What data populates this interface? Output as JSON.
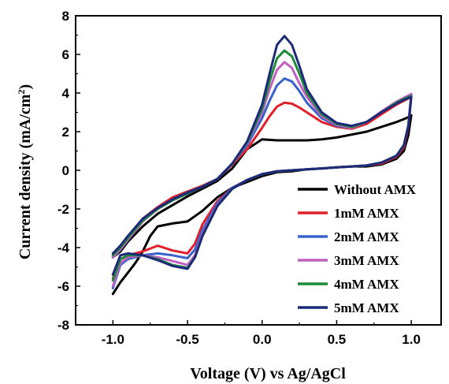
{
  "chart_data": {
    "type": "line",
    "xlabel": "Voltage (V) vs Ag/AgCl",
    "ylabel_main": "Current density (mA/cm",
    "ylabel_sup": "2",
    "ylabel_close": ")",
    "xlim": [
      -1.25,
      1.2
    ],
    "ylim": [
      -8,
      8
    ],
    "x_ticks": [
      -1.0,
      -0.5,
      0.0,
      0.5,
      1.0
    ],
    "x_tick_labels": [
      "-1.0",
      "-0.5",
      "0.0",
      "0.5",
      "1.0"
    ],
    "y_ticks": [
      -8,
      -6,
      -4,
      -2,
      0,
      2,
      4,
      6,
      8
    ],
    "y_tick_labels": [
      "-8",
      "-6",
      "-4",
      "-2",
      "0",
      "2",
      "4",
      "6",
      "8"
    ],
    "grid": false,
    "legend_position": "bottom-right",
    "series": [
      {
        "name": "Without AMX",
        "color": "#000000",
        "x": [
          -1.0,
          -0.95,
          -0.9,
          -0.8,
          -0.7,
          -0.6,
          -0.5,
          -0.4,
          -0.3,
          -0.2,
          -0.1,
          0.0,
          0.1,
          0.2,
          0.3,
          0.4,
          0.5,
          0.6,
          0.7,
          0.8,
          0.9,
          0.95,
          0.98,
          1.0,
          0.98,
          0.95,
          0.9,
          0.8,
          0.7,
          0.6,
          0.5,
          0.4,
          0.3,
          0.2,
          0.1,
          0.0,
          -0.1,
          -0.2,
          -0.3,
          -0.4,
          -0.5,
          -0.6,
          -0.7,
          -0.75,
          -0.8,
          -0.85,
          -0.9,
          -0.95,
          -1.0
        ],
        "y": [
          -4.5,
          -4.2,
          -3.7,
          -2.9,
          -2.25,
          -1.8,
          -1.35,
          -0.95,
          -0.55,
          0.1,
          1.1,
          1.6,
          1.55,
          1.55,
          1.55,
          1.6,
          1.7,
          1.85,
          2.0,
          2.25,
          2.5,
          2.65,
          2.75,
          2.85,
          1.8,
          1.0,
          0.6,
          0.3,
          0.2,
          0.2,
          0.15,
          0.1,
          0.05,
          -0.05,
          -0.1,
          -0.3,
          -0.6,
          -0.9,
          -1.4,
          -2.1,
          -2.65,
          -2.75,
          -2.9,
          -3.4,
          -4.2,
          -4.8,
          -5.3,
          -5.8,
          -6.4
        ]
      },
      {
        "name": "1mM AMX",
        "color": "#e0202a",
        "x": [
          -1.0,
          -0.95,
          -0.9,
          -0.8,
          -0.7,
          -0.6,
          -0.5,
          -0.4,
          -0.3,
          -0.2,
          -0.1,
          0.0,
          0.05,
          0.1,
          0.15,
          0.2,
          0.25,
          0.3,
          0.4,
          0.5,
          0.6,
          0.7,
          0.8,
          0.9,
          0.95,
          1.0,
          0.98,
          0.95,
          0.9,
          0.8,
          0.7,
          0.6,
          0.5,
          0.4,
          0.3,
          0.2,
          0.1,
          0.0,
          -0.1,
          -0.2,
          -0.3,
          -0.4,
          -0.45,
          -0.5,
          -0.6,
          -0.7,
          -0.8,
          -0.9,
          -0.95,
          -1.0
        ],
        "y": [
          -4.4,
          -4.0,
          -3.5,
          -2.5,
          -1.9,
          -1.4,
          -1.1,
          -0.8,
          -0.45,
          0.3,
          1.1,
          2.2,
          2.8,
          3.3,
          3.5,
          3.45,
          3.25,
          3.0,
          2.5,
          2.25,
          2.15,
          2.4,
          2.9,
          3.4,
          3.6,
          3.8,
          2.2,
          1.2,
          0.7,
          0.35,
          0.25,
          0.2,
          0.15,
          0.1,
          0.05,
          0.0,
          -0.05,
          -0.2,
          -0.5,
          -0.9,
          -1.6,
          -2.8,
          -3.8,
          -4.3,
          -4.15,
          -3.9,
          -4.2,
          -4.4,
          -4.6,
          -5.6
        ]
      },
      {
        "name": "2mM AMX",
        "color": "#3a62c9",
        "x": [
          -1.0,
          -0.95,
          -0.9,
          -0.8,
          -0.7,
          -0.6,
          -0.5,
          -0.4,
          -0.3,
          -0.2,
          -0.1,
          0.0,
          0.05,
          0.1,
          0.15,
          0.2,
          0.25,
          0.3,
          0.4,
          0.5,
          0.6,
          0.7,
          0.8,
          0.9,
          0.95,
          1.0,
          0.98,
          0.95,
          0.9,
          0.8,
          0.7,
          0.6,
          0.5,
          0.4,
          0.3,
          0.2,
          0.1,
          0.0,
          -0.1,
          -0.2,
          -0.3,
          -0.4,
          -0.45,
          -0.5,
          -0.6,
          -0.7,
          -0.8,
          -0.9,
          -0.95,
          -1.0
        ],
        "y": [
          -4.5,
          -4.1,
          -3.6,
          -2.6,
          -2.0,
          -1.5,
          -1.15,
          -0.85,
          -0.45,
          0.35,
          1.3,
          2.7,
          3.6,
          4.4,
          4.75,
          4.6,
          4.1,
          3.5,
          2.7,
          2.3,
          2.2,
          2.5,
          3.0,
          3.5,
          3.7,
          3.9,
          2.3,
          1.3,
          0.75,
          0.4,
          0.25,
          0.2,
          0.15,
          0.1,
          0.05,
          0.0,
          -0.05,
          -0.2,
          -0.5,
          -0.9,
          -1.7,
          -3.1,
          -4.1,
          -4.55,
          -4.4,
          -4.3,
          -4.4,
          -4.6,
          -4.9,
          -6.1
        ]
      },
      {
        "name": "3mM AMX",
        "color": "#c060c0",
        "x": [
          -1.0,
          -0.95,
          -0.9,
          -0.8,
          -0.7,
          -0.6,
          -0.5,
          -0.4,
          -0.3,
          -0.2,
          -0.1,
          0.0,
          0.05,
          0.1,
          0.15,
          0.2,
          0.25,
          0.3,
          0.4,
          0.5,
          0.6,
          0.7,
          0.8,
          0.9,
          0.95,
          1.0,
          0.98,
          0.95,
          0.9,
          0.8,
          0.7,
          0.6,
          0.5,
          0.4,
          0.3,
          0.2,
          0.1,
          0.0,
          -0.1,
          -0.2,
          -0.3,
          -0.4,
          -0.45,
          -0.5,
          -0.6,
          -0.7,
          -0.8,
          -0.9,
          -0.95,
          -1.0
        ],
        "y": [
          -4.5,
          -4.1,
          -3.6,
          -2.65,
          -2.0,
          -1.55,
          -1.2,
          -0.85,
          -0.45,
          0.35,
          1.4,
          3.0,
          4.2,
          5.2,
          5.6,
          5.3,
          4.5,
          3.8,
          2.8,
          2.35,
          2.2,
          2.5,
          3.05,
          3.55,
          3.75,
          3.95,
          2.3,
          1.3,
          0.75,
          0.4,
          0.25,
          0.2,
          0.15,
          0.1,
          0.05,
          0.0,
          -0.05,
          -0.2,
          -0.5,
          -0.95,
          -1.8,
          -3.3,
          -4.4,
          -4.9,
          -4.7,
          -4.5,
          -4.4,
          -4.5,
          -4.8,
          -6.0
        ]
      },
      {
        "name": "4mM AMX",
        "color": "#1f8a3a",
        "x": [
          -1.0,
          -0.95,
          -0.9,
          -0.8,
          -0.7,
          -0.6,
          -0.5,
          -0.4,
          -0.3,
          -0.2,
          -0.1,
          0.0,
          0.05,
          0.1,
          0.15,
          0.2,
          0.25,
          0.3,
          0.4,
          0.5,
          0.6,
          0.7,
          0.8,
          0.9,
          0.95,
          1.0,
          0.98,
          0.95,
          0.9,
          0.8,
          0.7,
          0.6,
          0.5,
          0.4,
          0.3,
          0.2,
          0.1,
          0.0,
          -0.1,
          -0.2,
          -0.3,
          -0.4,
          -0.45,
          -0.5,
          -0.6,
          -0.7,
          -0.8,
          -0.9,
          -0.95,
          -1.0
        ],
        "y": [
          -4.4,
          -4.0,
          -3.5,
          -2.6,
          -2.0,
          -1.55,
          -1.2,
          -0.85,
          -0.45,
          0.35,
          1.45,
          3.2,
          4.6,
          5.8,
          6.2,
          5.9,
          5.0,
          4.0,
          2.9,
          2.4,
          2.25,
          2.5,
          3.0,
          3.5,
          3.7,
          3.85,
          2.3,
          1.3,
          0.75,
          0.4,
          0.25,
          0.2,
          0.15,
          0.1,
          0.05,
          0.0,
          -0.05,
          -0.2,
          -0.5,
          -0.95,
          -1.85,
          -3.4,
          -4.5,
          -5.05,
          -4.9,
          -4.6,
          -4.4,
          -4.4,
          -4.6,
          -5.7
        ]
      },
      {
        "name": "5mM AMX",
        "color": "#1c2a78",
        "x": [
          -1.0,
          -0.95,
          -0.9,
          -0.8,
          -0.7,
          -0.6,
          -0.5,
          -0.4,
          -0.3,
          -0.2,
          -0.1,
          0.0,
          0.05,
          0.1,
          0.15,
          0.2,
          0.25,
          0.3,
          0.4,
          0.5,
          0.6,
          0.7,
          0.8,
          0.9,
          0.95,
          1.0,
          0.98,
          0.95,
          0.9,
          0.8,
          0.7,
          0.6,
          0.5,
          0.4,
          0.3,
          0.2,
          0.1,
          0.0,
          -0.1,
          -0.2,
          -0.3,
          -0.4,
          -0.45,
          -0.5,
          -0.6,
          -0.7,
          -0.8,
          -0.9,
          -0.95,
          -1.0
        ],
        "y": [
          -4.3,
          -3.9,
          -3.4,
          -2.5,
          -1.95,
          -1.5,
          -1.15,
          -0.85,
          -0.45,
          0.35,
          1.5,
          3.4,
          5.0,
          6.5,
          6.95,
          6.5,
          5.4,
          4.2,
          3.0,
          2.45,
          2.3,
          2.5,
          3.0,
          3.45,
          3.65,
          3.8,
          2.25,
          1.3,
          0.75,
          0.4,
          0.25,
          0.2,
          0.15,
          0.1,
          0.05,
          0.0,
          -0.05,
          -0.2,
          -0.5,
          -0.95,
          -1.85,
          -3.4,
          -4.5,
          -5.1,
          -4.95,
          -4.65,
          -4.4,
          -4.3,
          -4.4,
          -5.4
        ]
      }
    ]
  }
}
